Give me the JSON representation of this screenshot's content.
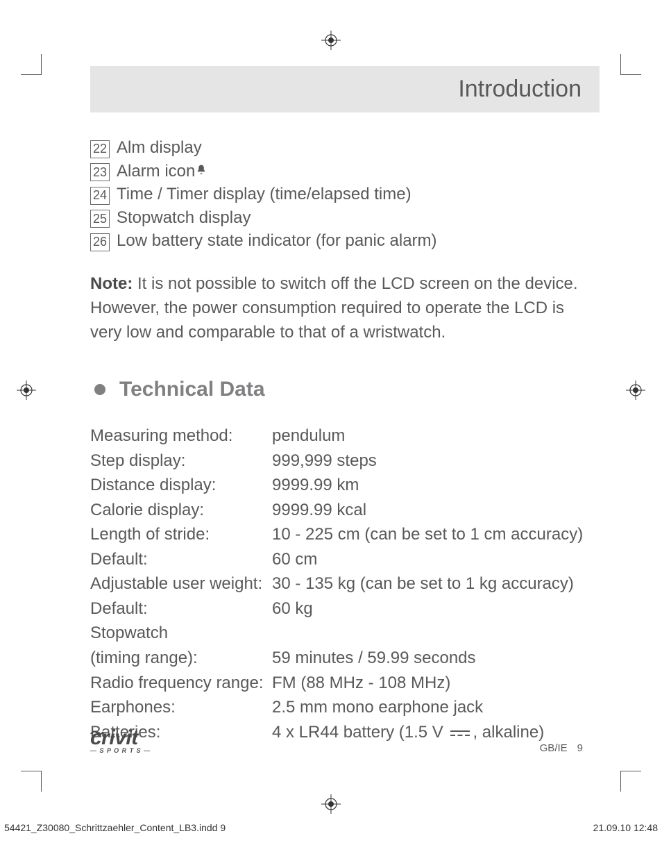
{
  "header": {
    "title": "Introduction"
  },
  "ref_list": [
    {
      "num": "22",
      "text": "Alm display",
      "icon": null
    },
    {
      "num": "23",
      "text": "Alarm icon",
      "icon": "bell"
    },
    {
      "num": "24",
      "text": "Time / Timer display (time/elapsed time)",
      "icon": null
    },
    {
      "num": "25",
      "text": "Stopwatch display",
      "icon": null
    },
    {
      "num": "26",
      "text": "Low battery state indicator (for panic alarm)",
      "icon": null
    }
  ],
  "note": {
    "label": "Note:",
    "body": " It is not possible to switch off the LCD screen on the device. However, the power consumption required to operate the LCD is very low and comparable to that of a wristwatch."
  },
  "section_title": "Technical Data",
  "tech_data": [
    {
      "label": "Measuring method:",
      "value": "pendulum"
    },
    {
      "label": "Step display:",
      "value": "999,999 steps"
    },
    {
      "label": "Distance display:",
      "value": "9999.99 km"
    },
    {
      "label": "Calorie display:",
      "value": "9999.99 kcal"
    },
    {
      "label": "Length of stride:",
      "value": "10 - 225 cm (can be set to 1 cm accuracy)"
    },
    {
      "label": "Default:",
      "value": "60 cm"
    },
    {
      "label": "Adjustable user weight:",
      "value": "30 - 135 kg (can be set to 1 kg accuracy)"
    },
    {
      "label": "Default:",
      "value": "60 kg"
    },
    {
      "label": "Stopwatch",
      "value": ""
    },
    {
      "label": "(timing range):",
      "value": "59 minutes / 59.99 seconds"
    },
    {
      "label": "Radio frequency range:",
      "value": "FM (88 MHz - 108 MHz)"
    },
    {
      "label": "Earphones:",
      "value": "2.5 mm mono earphone jack"
    }
  ],
  "batteries": {
    "label": "Batteries:",
    "pre": "4 x LR44 battery (1.5 V ",
    "post": ", alkaline)"
  },
  "brand": {
    "name": "crivit",
    "sub": "— S P O R T S —"
  },
  "page_footer": {
    "region": "GB/IE",
    "num": "9"
  },
  "indd": {
    "file": "54421_Z30080_Schrittzaehler_Content_LB3.indd   9",
    "stamp": "21.09.10   12:48"
  },
  "colors": {
    "text": "#59595b",
    "header_bg": "#e6e5e6",
    "heading": "#808083",
    "border": "#6b6b6d"
  }
}
